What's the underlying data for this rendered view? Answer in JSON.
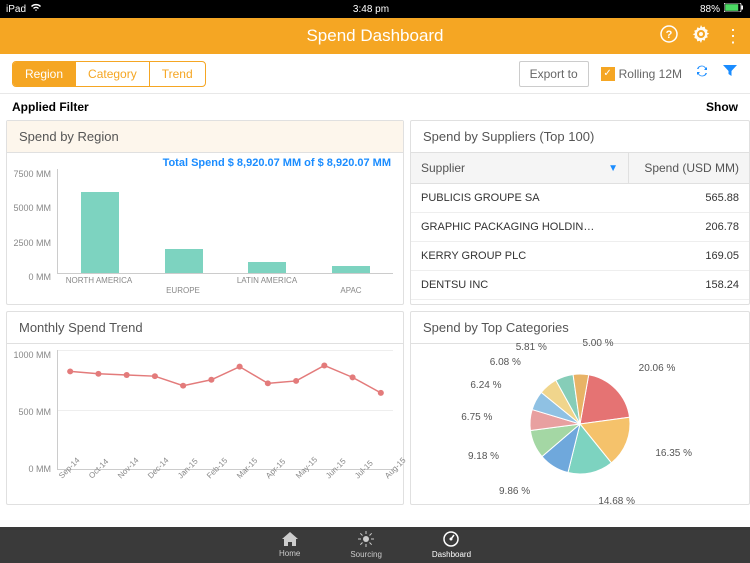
{
  "status_bar": {
    "device": "iPad",
    "time": "3:48 pm",
    "battery": "88%"
  },
  "header": {
    "title": "Spend Dashboard",
    "accent_color": "#f5a623"
  },
  "tabs": [
    {
      "label": "Region",
      "active": true
    },
    {
      "label": "Category",
      "active": false
    },
    {
      "label": "Trend",
      "active": false
    }
  ],
  "toolbar": {
    "export_label": "Export to",
    "rolling_label": "Rolling 12M",
    "rolling_checked": true
  },
  "filter_row": {
    "left": "Applied Filter",
    "right": "Show"
  },
  "region_chart": {
    "title": "Spend by Region",
    "total_label": "Total Spend $ 8,920.07 MM of $ 8,920.07 MM",
    "type": "bar",
    "y_ticks": [
      "7500 MM",
      "5000 MM",
      "2500 MM",
      "0 MM"
    ],
    "y_max": 7500,
    "categories": [
      "NORTH AMERICA",
      "EUROPE",
      "LATIN AMERICA",
      "APAC"
    ],
    "values": [
      5800,
      1700,
      800,
      500
    ],
    "bar_color": "#7dd3c0",
    "background": "#ffffff"
  },
  "supplier_table": {
    "title": "Spend by Suppliers (Top 100)",
    "col_supplier": "Supplier",
    "col_spend": "Spend (USD MM)",
    "rows": [
      {
        "name": "PUBLICIS GROUPE SA",
        "spend": "565.88"
      },
      {
        "name": "GRAPHIC PACKAGING HOLDIN…",
        "spend": "206.78"
      },
      {
        "name": "KERRY GROUP PLC",
        "spend": "169.05"
      },
      {
        "name": "DENTSU INC",
        "spend": "158.24"
      }
    ]
  },
  "trend_chart": {
    "title": "Monthly Spend Trend",
    "type": "line",
    "y_ticks": [
      "1000 MM",
      "500 MM",
      "0 MM"
    ],
    "y_max": 1000,
    "x_labels": [
      "Sep-14",
      "Oct-14",
      "Nov-14",
      "Dec-14",
      "Jan-15",
      "Feb-15",
      "Mar-15",
      "Apr-15",
      "May-15",
      "Jun-15",
      "Jul-15",
      "Aug-15"
    ],
    "values": [
      820,
      800,
      790,
      780,
      700,
      750,
      860,
      720,
      740,
      870,
      770,
      640
    ],
    "line_color": "#e37b7b",
    "marker_size": 3,
    "grid_color": "#eeeeee"
  },
  "category_pie": {
    "title": "Spend by Top Categories",
    "type": "pie",
    "slices": [
      {
        "label": "20.06 %",
        "value": 20.06,
        "color": "#e57373"
      },
      {
        "label": "16.35 %",
        "value": 16.35,
        "color": "#f5c26b"
      },
      {
        "label": "14.68 %",
        "value": 14.68,
        "color": "#7dd3c0"
      },
      {
        "label": "9.86 %",
        "value": 9.86,
        "color": "#6fa8dc"
      },
      {
        "label": "9.18 %",
        "value": 9.18,
        "color": "#a4d7a4"
      },
      {
        "label": "6.75 %",
        "value": 6.75,
        "color": "#e8a0a0"
      },
      {
        "label": "6.24 %",
        "value": 6.24,
        "color": "#8fc1e3"
      },
      {
        "label": "6.08 %",
        "value": 6.08,
        "color": "#f0d58c"
      },
      {
        "label": "5.81 %",
        "value": 5.81,
        "color": "#86cdb8"
      },
      {
        "label": "5.00 %",
        "value": 5.0,
        "color": "#e8b366"
      }
    ]
  },
  "bottom_nav": {
    "items": [
      {
        "label": "Home",
        "icon": "home-icon",
        "active": false
      },
      {
        "label": "Sourcing",
        "icon": "sourcing-icon",
        "active": false
      },
      {
        "label": "Dashboard",
        "icon": "dashboard-icon",
        "active": true
      }
    ]
  }
}
